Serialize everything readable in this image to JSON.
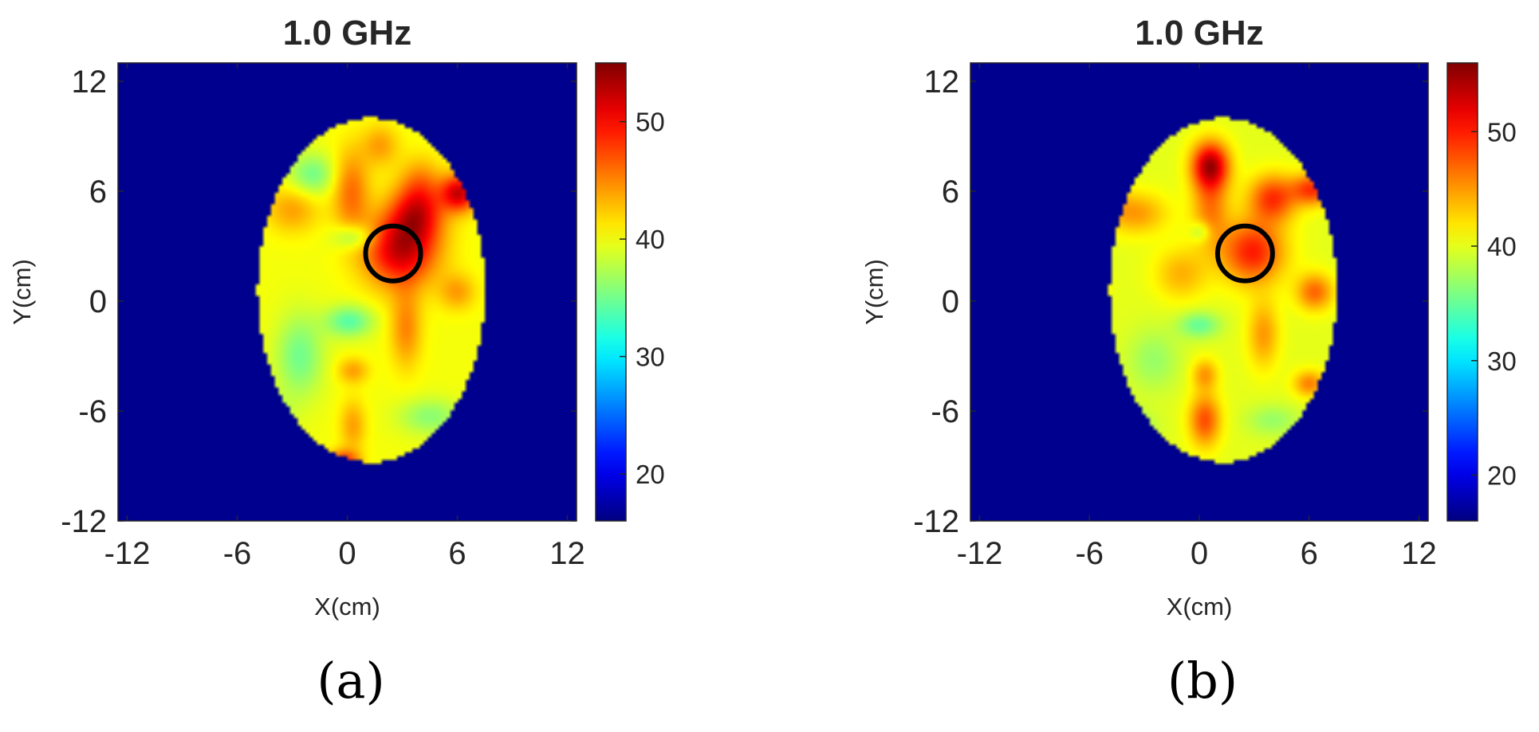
{
  "colors": {
    "background": "#00008f",
    "outline": "#000000",
    "colormap": "jet"
  },
  "chart_data": [
    {
      "type": "heatmap",
      "title": "1.0 GHz",
      "xlabel": "X(cm)",
      "ylabel": "Y(cm)",
      "xlim": [
        -12.5,
        12.5
      ],
      "ylim": [
        -12,
        13
      ],
      "xticks": [
        "-12",
        "-6",
        "0",
        "6",
        "12"
      ],
      "yticks": [
        "12",
        "6",
        "0",
        "-6",
        "-12"
      ],
      "colorbar": {
        "clim": [
          16,
          55
        ],
        "ticks": [
          "50",
          "40",
          "30",
          "20"
        ]
      },
      "ellipse": {
        "cx": 1.3,
        "cy": 0.6,
        "rx": 6.2,
        "ry": 9.4
      },
      "base_value": 40,
      "marker_circle": {
        "cx": 2.5,
        "cy": 2.6,
        "r": 1.5
      },
      "blobs": [
        {
          "x": 2.9,
          "y": 2.8,
          "sx": 1.4,
          "sy": 1.4,
          "a": 12
        },
        {
          "x": 3.8,
          "y": 4.8,
          "sx": 1.0,
          "sy": 1.1,
          "a": 9
        },
        {
          "x": 6.1,
          "y": 5.9,
          "sx": 0.7,
          "sy": 0.7,
          "a": 12
        },
        {
          "x": 0.2,
          "y": 6.0,
          "sx": 0.7,
          "sy": 1.6,
          "a": 6
        },
        {
          "x": 1.8,
          "y": 8.5,
          "sx": 0.7,
          "sy": 0.8,
          "a": 4
        },
        {
          "x": -5.6,
          "y": 6.0,
          "sx": 0.7,
          "sy": 0.6,
          "a": 5
        },
        {
          "x": -3.0,
          "y": 5.0,
          "sx": 1.0,
          "sy": 0.9,
          "a": 4
        },
        {
          "x": 3.2,
          "y": -1.5,
          "sx": 0.6,
          "sy": 1.5,
          "a": 5
        },
        {
          "x": 6.0,
          "y": 0.5,
          "sx": 0.7,
          "sy": 0.7,
          "a": 4
        },
        {
          "x": 0.3,
          "y": -3.8,
          "sx": 0.6,
          "sy": 0.5,
          "a": 4
        },
        {
          "x": 0.3,
          "y": -6.8,
          "sx": 0.5,
          "sy": 1.0,
          "a": 4
        },
        {
          "x": -0.2,
          "y": -8.7,
          "sx": 0.6,
          "sy": 0.4,
          "a": 8
        },
        {
          "x": -1.9,
          "y": 6.9,
          "sx": 0.9,
          "sy": 0.8,
          "a": -5
        },
        {
          "x": 0.4,
          "y": 3.5,
          "sx": 0.8,
          "sy": 0.5,
          "a": -5
        },
        {
          "x": 0.1,
          "y": -1.1,
          "sx": 0.9,
          "sy": 0.6,
          "a": -6
        },
        {
          "x": -2.6,
          "y": -3.0,
          "sx": 0.9,
          "sy": 1.6,
          "a": -5
        },
        {
          "x": -4.5,
          "y": -6.3,
          "sx": 0.9,
          "sy": 0.8,
          "a": -4
        },
        {
          "x": 4.5,
          "y": -6.3,
          "sx": 1.2,
          "sy": 0.7,
          "a": -4
        },
        {
          "x": 4.0,
          "y": 6.5,
          "sx": 0.8,
          "sy": 1.0,
          "a": 4
        }
      ]
    },
    {
      "type": "heatmap",
      "title": "1.0 GHz",
      "xlabel": "X(cm)",
      "ylabel": "Y(cm)",
      "xlim": [
        -12.5,
        12.5
      ],
      "ylim": [
        -12,
        13
      ],
      "xticks": [
        "-12",
        "-6",
        "0",
        "6",
        "12"
      ],
      "yticks": [
        "12",
        "6",
        "0",
        "-6",
        "-12"
      ],
      "colorbar": {
        "clim": [
          16,
          56
        ],
        "ticks": [
          "50",
          "40",
          "30",
          "20"
        ]
      },
      "ellipse": {
        "cx": 1.3,
        "cy": 0.6,
        "rx": 6.2,
        "ry": 9.4
      },
      "base_value": 40,
      "marker_circle": {
        "cx": 2.5,
        "cy": 2.6,
        "r": 1.5
      },
      "blobs": [
        {
          "x": 2.9,
          "y": 2.7,
          "sx": 1.2,
          "sy": 1.2,
          "a": 10
        },
        {
          "x": 4.0,
          "y": 5.6,
          "sx": 0.9,
          "sy": 0.9,
          "a": 9
        },
        {
          "x": 6.2,
          "y": 6.1,
          "sx": 0.8,
          "sy": 0.6,
          "a": 9
        },
        {
          "x": 0.6,
          "y": 7.4,
          "sx": 0.7,
          "sy": 0.9,
          "a": 14
        },
        {
          "x": 0.6,
          "y": 5.0,
          "sx": 0.7,
          "sy": 1.4,
          "a": 6
        },
        {
          "x": -5.6,
          "y": 5.5,
          "sx": 0.8,
          "sy": 0.6,
          "a": 7
        },
        {
          "x": -3.5,
          "y": 4.8,
          "sx": 1.2,
          "sy": 0.8,
          "a": 5
        },
        {
          "x": -1.0,
          "y": 1.5,
          "sx": 1.0,
          "sy": 1.0,
          "a": 4
        },
        {
          "x": 6.3,
          "y": 0.5,
          "sx": 0.7,
          "sy": 0.7,
          "a": 7
        },
        {
          "x": 3.5,
          "y": -1.8,
          "sx": 0.6,
          "sy": 1.3,
          "a": 5
        },
        {
          "x": 6.0,
          "y": -4.5,
          "sx": 0.6,
          "sy": 0.5,
          "a": 6
        },
        {
          "x": 0.3,
          "y": -4.0,
          "sx": 0.5,
          "sy": 0.6,
          "a": 5
        },
        {
          "x": 0.3,
          "y": -6.5,
          "sx": 0.6,
          "sy": 1.0,
          "a": 8
        },
        {
          "x": -5.8,
          "y": 0.6,
          "sx": 0.5,
          "sy": 0.6,
          "a": 4
        },
        {
          "x": 0.0,
          "y": -1.3,
          "sx": 0.8,
          "sy": 0.5,
          "a": -5
        },
        {
          "x": 0.1,
          "y": 3.8,
          "sx": 0.4,
          "sy": 0.4,
          "a": -4
        },
        {
          "x": -2.5,
          "y": -3.2,
          "sx": 1.0,
          "sy": 1.2,
          "a": -3
        },
        {
          "x": -4.0,
          "y": -6.8,
          "sx": 1.0,
          "sy": 0.6,
          "a": -4
        },
        {
          "x": 4.0,
          "y": -6.5,
          "sx": 1.0,
          "sy": 0.6,
          "a": -3
        }
      ]
    }
  ],
  "panel_labels": [
    "(a)",
    "(b)"
  ]
}
